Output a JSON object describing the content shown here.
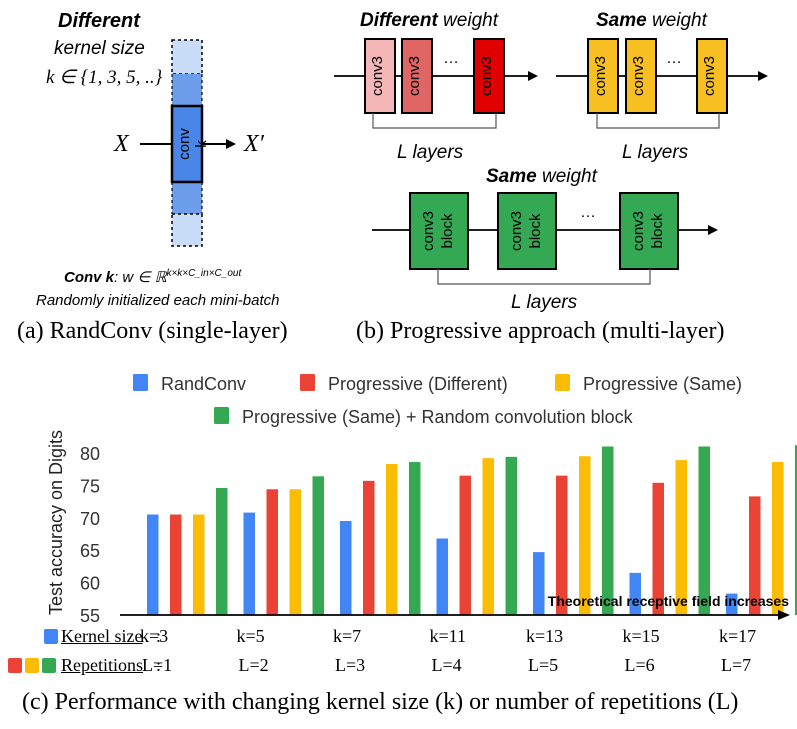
{
  "panel_a": {
    "title_bold": "Different",
    "kernel_label": "kernel size",
    "k_set": "k ∈ {1, 3, 5, ..}",
    "input": "X",
    "output": "X′",
    "conv_label": "conv k",
    "conv_def_bold": "Conv k",
    "conv_def_rest": ": w ∈ ℝ",
    "conv_def_sup": "k×k×C_in×C_out",
    "init_note": "Randomly initialized each mini-batch",
    "caption": "(a) RandConv (single-layer)",
    "colors": {
      "blue": "#4a86e8",
      "blue_light": "#a9c7f5"
    }
  },
  "panel_b": {
    "diff_bold": "Different",
    "diff_rest": " weight",
    "same_bold": "Same",
    "same_rest": " weight",
    "same2_bold": "Same",
    "same2_rest": " weight",
    "conv3": "conv3",
    "block_line1": "conv3",
    "block_line2": "block",
    "dots": "…",
    "layers": "L layers",
    "caption": "(b) Progressive approach (multi-layer)",
    "colors": {
      "red_light": "#f4b6b6",
      "red_mid": "#e06666",
      "red_dark": "#e00000",
      "yellow": "#f7bf21",
      "green": "#34a853"
    }
  },
  "panel_c": {
    "caption": "(c) Performance with changing kernel size (k) or number of repetitions (L)",
    "row1_label": "Kernel size",
    "row2_label": "Repetitions",
    "k_values": [
      "k=3",
      "k=5",
      "k=7",
      "k=11",
      "k=13",
      "k=15",
      "k=17"
    ],
    "l_values": [
      "L=1",
      "L=2",
      "L=3",
      "L=4",
      "L=5",
      "L=6",
      "L=7"
    ],
    "arrow_note": "Theoretical receptive field increases"
  },
  "chart_data": {
    "type": "bar",
    "ylabel": "Test accuracy on Digits",
    "ylim": [
      55,
      82
    ],
    "yticks": [
      55,
      60,
      65,
      70,
      75,
      80
    ],
    "categories": [
      "1",
      "2",
      "3",
      "4",
      "5",
      "6",
      "7"
    ],
    "legend_position": "top",
    "grid": false,
    "series": [
      {
        "name": "RandConv",
        "color": "#4285f4",
        "values": [
          70.5,
          70.8,
          69.5,
          66.8,
          64.7,
          61.5,
          58.3
        ]
      },
      {
        "name": "Progressive (Different)",
        "color": "#ea4335",
        "values": [
          70.5,
          74.4,
          75.7,
          76.5,
          76.5,
          75.4,
          73.3
        ]
      },
      {
        "name": "Progressive (Same)",
        "color": "#fbbc05",
        "values": [
          70.5,
          74.4,
          78.3,
          79.2,
          79.5,
          78.9,
          78.6
        ]
      },
      {
        "name": "Progressive (Same) + Random convolution block",
        "color": "#34a853",
        "values": [
          74.6,
          76.4,
          78.6,
          79.4,
          81.0,
          81.0,
          81.2
        ]
      }
    ]
  }
}
